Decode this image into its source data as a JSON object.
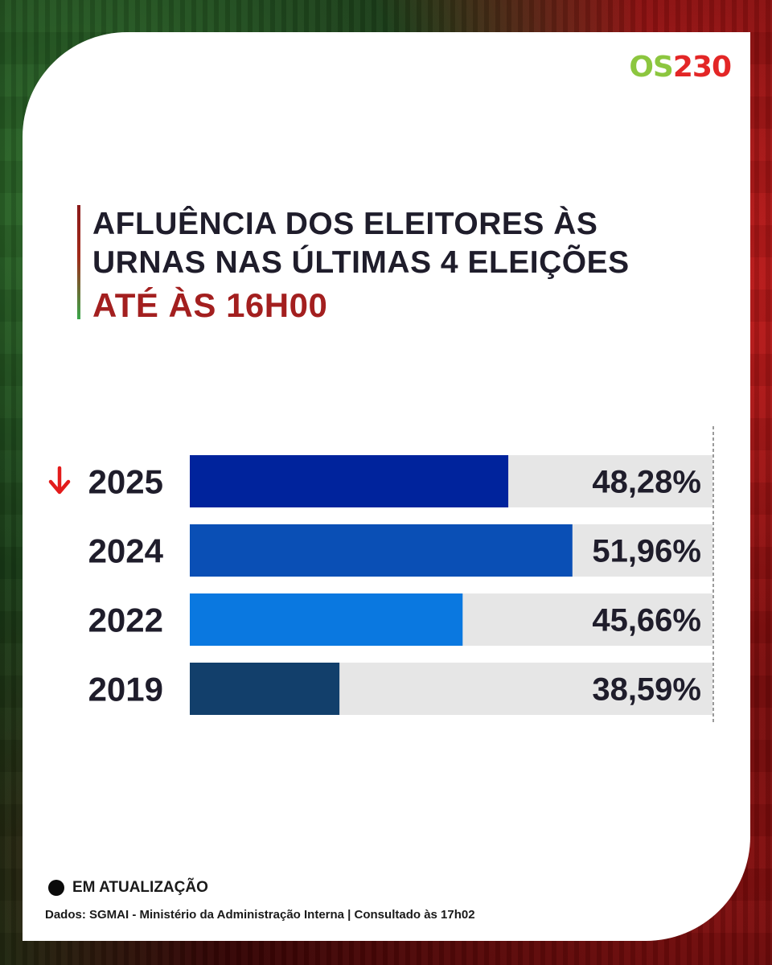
{
  "logo": {
    "part1": "OS",
    "part2": "230"
  },
  "title": "AFLUÊNCIA DOS ELEITORES ÀS URNAS NAS ÚLTIMAS 4 ELEIÇÕES",
  "subtitle": "ATÉ ÀS 16H00",
  "chart_data": {
    "type": "bar",
    "orientation": "horizontal",
    "categories": [
      "2025",
      "2024",
      "2022",
      "2019"
    ],
    "values": [
      48.28,
      51.96,
      45.66,
      38.59
    ],
    "value_labels": [
      "48,28%",
      "51,96%",
      "45,66%",
      "38,59%"
    ],
    "bar_colors": [
      "#00239c",
      "#0a4fb5",
      "#0a78e0",
      "#123f6b"
    ],
    "track_color": "#e6e6e6",
    "decrease_indicator": "down-arrow-icon",
    "indicator_color": "#e31b1b",
    "indicator_category": "2025",
    "xlim": [
      30,
      60
    ],
    "grid": false
  },
  "legend": {
    "label": "EM ATUALIZAÇÃO"
  },
  "source": "Dados: SGMAI - Ministério da Administração Interna | Consultado às 17h02"
}
